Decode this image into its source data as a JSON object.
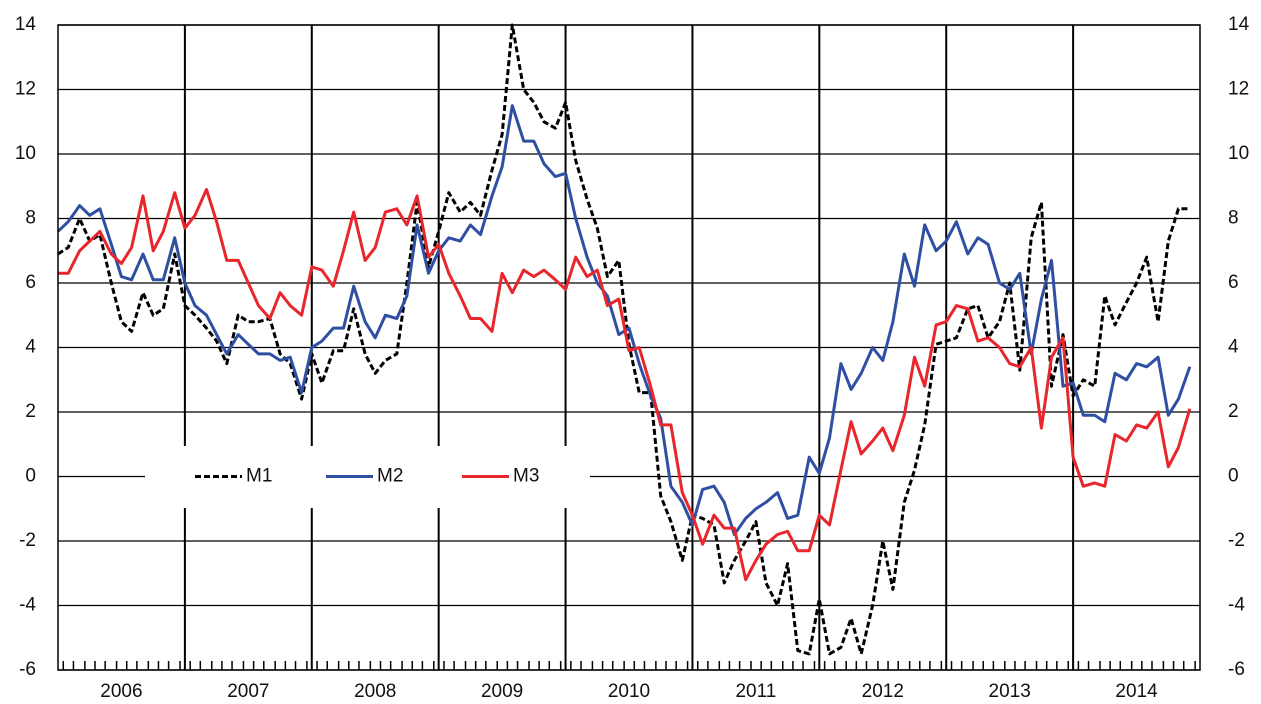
{
  "chart_data": {
    "type": "line",
    "x": [
      2006,
      2006.08,
      2006.17,
      2006.25,
      2006.33,
      2006.42,
      2006.5,
      2006.58,
      2006.67,
      2006.75,
      2006.83,
      2006.92,
      2007,
      2007.08,
      2007.17,
      2007.25,
      2007.33,
      2007.42,
      2007.5,
      2007.58,
      2007.67,
      2007.75,
      2007.83,
      2007.92,
      2008,
      2008.08,
      2008.17,
      2008.25,
      2008.33,
      2008.42,
      2008.5,
      2008.58,
      2008.67,
      2008.75,
      2008.83,
      2008.92,
      2009,
      2009.08,
      2009.17,
      2009.25,
      2009.33,
      2009.42,
      2009.5,
      2009.58,
      2009.67,
      2009.75,
      2009.83,
      2009.92,
      2010,
      2010.08,
      2010.17,
      2010.25,
      2010.33,
      2010.42,
      2010.5,
      2010.58,
      2010.67,
      2010.75,
      2010.83,
      2010.92,
      2011,
      2011.08,
      2011.17,
      2011.25,
      2011.33,
      2011.42,
      2011.5,
      2011.58,
      2011.67,
      2011.75,
      2011.83,
      2011.92,
      2012,
      2012.08,
      2012.17,
      2012.25,
      2012.33,
      2012.42,
      2012.5,
      2012.58,
      2012.67,
      2012.75,
      2012.83,
      2012.92,
      2013,
      2013.08,
      2013.17,
      2013.25,
      2013.33,
      2013.42,
      2013.5,
      2013.58,
      2013.67,
      2013.75,
      2013.83,
      2013.92,
      2014,
      2014.08,
      2014.17,
      2014.25,
      2014.33,
      2014.42,
      2014.5,
      2014.58,
      2014.67,
      2014.75,
      2014.83,
      2014.92
    ],
    "series": [
      {
        "name": "M1",
        "color": "#000000",
        "linestyle": "dashed",
        "values": [
          6.9,
          7.1,
          8.0,
          7.3,
          7.5,
          6.0,
          4.8,
          4.5,
          5.7,
          5.0,
          5.2,
          6.9,
          5.3,
          5.0,
          4.6,
          4.2,
          3.5,
          5.0,
          4.8,
          4.8,
          4.9,
          3.8,
          3.5,
          2.4,
          3.8,
          2.9,
          3.9,
          3.9,
          5.2,
          3.8,
          3.2,
          3.6,
          3.8,
          6.0,
          8.5,
          6.5,
          7.6,
          8.8,
          8.2,
          8.5,
          8.1,
          9.5,
          10.6,
          14.0,
          12.0,
          11.6,
          11.0,
          10.8,
          11.6,
          9.8,
          8.6,
          7.7,
          6.2,
          6.7,
          4.1,
          2.6,
          2.6,
          -0.6,
          -1.4,
          -2.6,
          -1.2,
          -1.3,
          -1.5,
          -3.3,
          -2.6,
          -2.0,
          -1.4,
          -3.3,
          -4.0,
          -2.7,
          -5.4,
          -5.5,
          -3.8,
          -5.5,
          -5.3,
          -4.4,
          -5.5,
          -4.0,
          -2.0,
          -3.5,
          -0.8,
          0.2,
          1.6,
          4.1,
          4.2,
          4.3,
          5.2,
          5.3,
          4.3,
          4.8,
          6.0,
          3.3,
          7.4,
          8.5,
          2.8,
          4.4,
          2.5,
          3.0,
          2.8,
          5.6,
          4.7,
          5.4,
          6.0,
          6.8,
          4.8,
          7.3,
          8.3,
          8.3
        ]
      },
      {
        "name": "M2",
        "color": "#2f4fa3",
        "linestyle": "solid",
        "values": [
          7.6,
          7.9,
          8.4,
          8.1,
          8.3,
          7.2,
          6.2,
          6.1,
          6.9,
          6.1,
          6.1,
          7.4,
          6.0,
          5.3,
          5.0,
          4.4,
          3.8,
          4.4,
          4.1,
          3.8,
          3.8,
          3.6,
          3.7,
          2.6,
          4.0,
          4.2,
          4.6,
          4.6,
          5.9,
          4.8,
          4.3,
          5.0,
          4.9,
          5.6,
          7.8,
          6.3,
          7.0,
          7.4,
          7.3,
          7.8,
          7.5,
          8.7,
          9.6,
          11.5,
          10.4,
          10.4,
          9.7,
          9.3,
          9.4,
          8.0,
          6.8,
          6.0,
          5.6,
          4.4,
          4.6,
          3.5,
          2.5,
          1.8,
          -0.3,
          -0.8,
          -1.5,
          -0.4,
          -0.3,
          -0.8,
          -1.8,
          -1.3,
          -1.0,
          -0.8,
          -0.5,
          -1.3,
          -1.2,
          0.6,
          0.1,
          1.2,
          3.5,
          2.7,
          3.2,
          4.0,
          3.6,
          4.8,
          6.9,
          5.9,
          7.8,
          7.0,
          7.3,
          7.9,
          6.9,
          7.4,
          7.2,
          6.0,
          5.8,
          6.3,
          3.8,
          5.5,
          6.7,
          2.8,
          2.9,
          1.9,
          1.9,
          1.7,
          3.2,
          3.0,
          3.5,
          3.4,
          3.7,
          1.9,
          2.4,
          3.4
        ]
      },
      {
        "name": "M3",
        "color": "#e8262b",
        "linestyle": "solid",
        "values": [
          6.3,
          6.3,
          7.0,
          7.3,
          7.6,
          6.9,
          6.6,
          7.1,
          8.7,
          7.0,
          7.6,
          8.8,
          7.7,
          8.1,
          8.9,
          7.9,
          6.7,
          6.7,
          6.0,
          5.3,
          4.9,
          5.7,
          5.3,
          5.0,
          6.5,
          6.4,
          5.9,
          7.0,
          8.2,
          6.7,
          7.1,
          8.2,
          8.3,
          7.8,
          8.7,
          6.8,
          7.2,
          6.3,
          5.6,
          4.9,
          4.9,
          4.5,
          6.3,
          5.7,
          6.4,
          6.2,
          6.4,
          6.1,
          5.8,
          6.8,
          6.2,
          6.4,
          5.3,
          5.5,
          3.9,
          4.0,
          2.8,
          1.6,
          1.6,
          -0.5,
          -1.2,
          -2.1,
          -1.2,
          -1.6,
          -1.6,
          -3.2,
          -2.6,
          -2.1,
          -1.8,
          -1.7,
          -2.3,
          -2.3,
          -1.2,
          -1.5,
          0.2,
          1.7,
          0.7,
          1.1,
          1.5,
          0.8,
          1.9,
          3.7,
          2.8,
          4.7,
          4.8,
          5.3,
          5.2,
          4.2,
          4.3,
          4.0,
          3.5,
          3.4,
          4.0,
          1.5,
          3.7,
          4.3,
          0.6,
          -0.3,
          -0.2,
          -0.3,
          1.3,
          1.1,
          1.6,
          1.5,
          2.0,
          0.3,
          0.9,
          2.1
        ]
      }
    ],
    "xlim": [
      2006,
      2015
    ],
    "xticks": [
      {
        "value": 2006.5,
        "label": "2006"
      },
      {
        "value": 2007.5,
        "label": "2007"
      },
      {
        "value": 2008.5,
        "label": "2008"
      },
      {
        "value": 2009.5,
        "label": "2009"
      },
      {
        "value": 2010.5,
        "label": "2010"
      },
      {
        "value": 2011.5,
        "label": "2011"
      },
      {
        "value": 2012.5,
        "label": "2012"
      },
      {
        "value": 2013.5,
        "label": "2013"
      },
      {
        "value": 2014.5,
        "label": "2014"
      }
    ],
    "year_lines": [
      2007,
      2008,
      2009,
      2010,
      2011,
      2012,
      2013,
      2014
    ],
    "ylim": [
      -6,
      14
    ],
    "yticks": [
      -6,
      -4,
      -2,
      0,
      2,
      4,
      6,
      8,
      10,
      12,
      14
    ],
    "right_axis_labels": true,
    "grid": true
  }
}
